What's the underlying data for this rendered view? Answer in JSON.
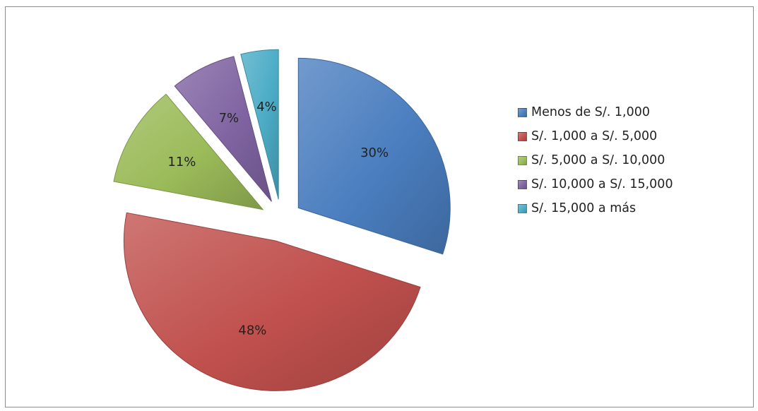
{
  "chart_data": {
    "type": "pie",
    "title": "",
    "categories": [
      "Menos de S/. 1,000",
      "S/. 1,000 a S/. 5,000",
      "S/. 5,000 a S/. 10,000",
      "S/. 10,000 a S/. 15,000",
      "S/. 15,000 a más"
    ],
    "values": [
      30,
      48,
      11,
      7,
      4
    ],
    "data_labels": [
      "30%",
      "48%",
      "11%",
      "7%",
      "4%"
    ],
    "colors": [
      "#4a7ebf",
      "#c0504d",
      "#9bbb59",
      "#8064a2",
      "#4bacc6"
    ],
    "exploded": true,
    "legend_position": "right"
  }
}
